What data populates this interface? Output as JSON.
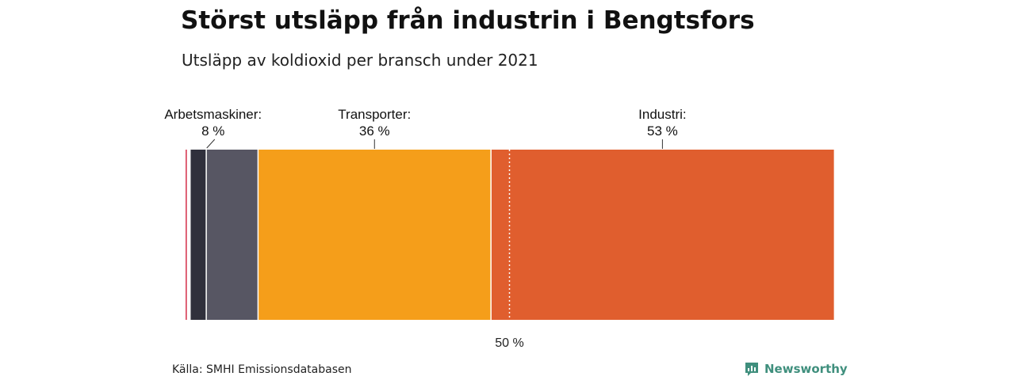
{
  "header": {
    "title": "Störst utsläpp från industrin i Bengtsfors",
    "subtitle": "Utsläpp av koldioxid per bransch under 2021"
  },
  "chart_data": {
    "type": "bar",
    "orientation": "horizontal-stacked",
    "unit": "%",
    "xlim": [
      0,
      100
    ],
    "segments": [
      {
        "value": 0.3,
        "color": "#d9455c",
        "label": ""
      },
      {
        "value": 0.4,
        "color": "#ffffff",
        "label": ""
      },
      {
        "value": 2.5,
        "color": "#30303c",
        "label": ""
      },
      {
        "value": 8,
        "color": "#575663",
        "label": "Arbetsmaskiner:",
        "pct_label": "8 %"
      },
      {
        "value": 36,
        "color": "#f59e1a",
        "label": "Transporter:",
        "pct_label": "36 %"
      },
      {
        "value": 53,
        "color": "#e05e2e",
        "label": "Industri:",
        "pct_label": "53 %"
      }
    ],
    "reference_line": {
      "value": 50,
      "label": "50 %"
    }
  },
  "footer": {
    "source": "Källa: SMHI Emissionsdatabasen",
    "brand": "Newsworthy",
    "brand_color": "#3f8f7d"
  }
}
